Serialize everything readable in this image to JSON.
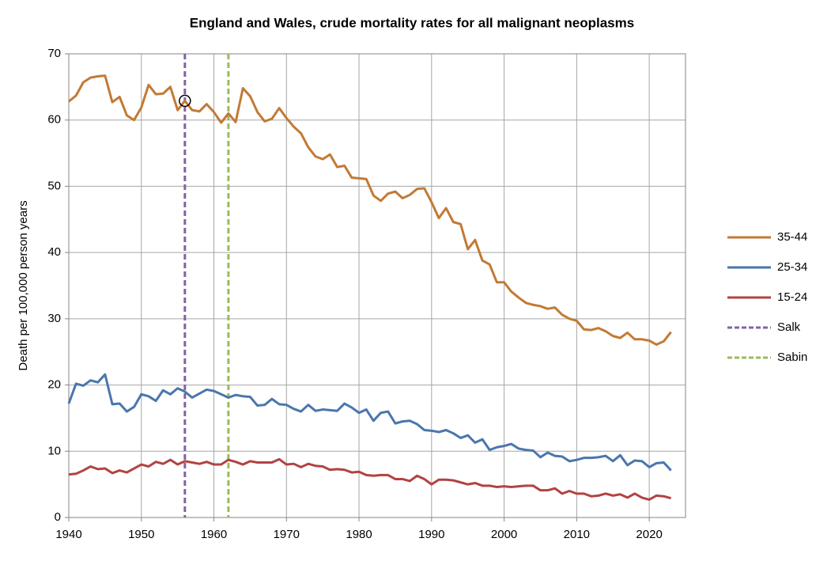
{
  "chart_data": {
    "type": "line",
    "title": "England and Wales, crude mortality rates for all malignant neoplasms",
    "y_label": "Death per 100,000 person years",
    "x": [
      1940,
      1941,
      1942,
      1943,
      1944,
      1945,
      1946,
      1947,
      1948,
      1949,
      1950,
      1951,
      1952,
      1953,
      1954,
      1955,
      1956,
      1957,
      1958,
      1959,
      1960,
      1961,
      1962,
      1963,
      1964,
      1965,
      1966,
      1967,
      1968,
      1969,
      1970,
      1971,
      1972,
      1973,
      1974,
      1975,
      1976,
      1977,
      1978,
      1979,
      1980,
      1981,
      1982,
      1983,
      1984,
      1985,
      1986,
      1987,
      1988,
      1989,
      1990,
      1991,
      1992,
      1993,
      1994,
      1995,
      1996,
      1997,
      1998,
      1999,
      2000,
      2001,
      2002,
      2003,
      2004,
      2005,
      2006,
      2007,
      2008,
      2009,
      2010,
      2011,
      2012,
      2013,
      2014,
      2015,
      2016,
      2017,
      2018,
      2019,
      2020,
      2021,
      2022,
      2023
    ],
    "series": [
      {
        "name": "35-44",
        "color": "#c27a35",
        "values": [
          62.8,
          63.7,
          65.7,
          66.4,
          66.6,
          66.7,
          62.7,
          63.5,
          60.7,
          60.0,
          61.9,
          65.3,
          63.9,
          64.0,
          65.0,
          61.5,
          62.9,
          61.5,
          61.3,
          62.4,
          61.2,
          59.6,
          61.0,
          59.7,
          64.8,
          63.6,
          61.2,
          59.8,
          60.2,
          61.8,
          60.3,
          59.0,
          58.0,
          55.9,
          54.5,
          54.1,
          54.8,
          52.9,
          53.1,
          51.3,
          51.2,
          51.1,
          48.6,
          47.8,
          48.9,
          49.2,
          48.2,
          48.7,
          49.6,
          49.7,
          47.6,
          45.2,
          46.7,
          44.6,
          44.3,
          40.5,
          41.9,
          38.8,
          38.2,
          35.5,
          35.5,
          34.1,
          33.2,
          32.4,
          32.1,
          31.9,
          31.5,
          31.7,
          30.6,
          30.0,
          29.7,
          28.4,
          28.3,
          28.6,
          28.1,
          27.4,
          27.1,
          27.9,
          26.9,
          26.9,
          26.7,
          26.1,
          26.6,
          28.0
        ]
      },
      {
        "name": "25-34",
        "color": "#4a76ad",
        "values": [
          17.2,
          20.2,
          19.9,
          20.7,
          20.4,
          21.6,
          17.1,
          17.2,
          16.0,
          16.7,
          18.6,
          18.3,
          17.6,
          19.2,
          18.6,
          19.5,
          19.0,
          18.1,
          18.7,
          19.3,
          19.1,
          18.6,
          18.1,
          18.5,
          18.3,
          18.2,
          16.9,
          17.0,
          17.9,
          17.1,
          17.0,
          16.4,
          16.0,
          17.0,
          16.1,
          16.3,
          16.2,
          16.1,
          17.2,
          16.6,
          15.8,
          16.3,
          14.6,
          15.8,
          16.0,
          14.2,
          14.5,
          14.6,
          14.1,
          13.2,
          13.1,
          12.9,
          13.2,
          12.7,
          12.0,
          12.4,
          11.3,
          11.8,
          10.2,
          10.6,
          10.8,
          11.1,
          10.4,
          10.2,
          10.1,
          9.1,
          9.8,
          9.3,
          9.2,
          8.5,
          8.7,
          9.0,
          9.0,
          9.1,
          9.3,
          8.5,
          9.4,
          7.9,
          8.6,
          8.5,
          7.6,
          8.2,
          8.3,
          7.1
        ]
      },
      {
        "name": "15-24",
        "color": "#b24343",
        "values": [
          6.5,
          6.6,
          7.1,
          7.7,
          7.3,
          7.4,
          6.7,
          7.1,
          6.8,
          7.4,
          8.0,
          7.7,
          8.4,
          8.1,
          8.7,
          8.0,
          8.5,
          8.3,
          8.1,
          8.4,
          8.0,
          8.0,
          8.7,
          8.4,
          8.0,
          8.5,
          8.3,
          8.3,
          8.3,
          8.8,
          8.0,
          8.1,
          7.6,
          8.1,
          7.8,
          7.7,
          7.2,
          7.3,
          7.2,
          6.8,
          6.9,
          6.4,
          6.3,
          6.4,
          6.4,
          5.8,
          5.8,
          5.5,
          6.3,
          5.8,
          5.0,
          5.7,
          5.7,
          5.6,
          5.3,
          5.0,
          5.2,
          4.8,
          4.8,
          4.6,
          4.7,
          4.6,
          4.7,
          4.8,
          4.8,
          4.1,
          4.1,
          4.4,
          3.6,
          4.0,
          3.6,
          3.6,
          3.2,
          3.3,
          3.6,
          3.3,
          3.5,
          3.0,
          3.6,
          3.0,
          2.7,
          3.3,
          3.2,
          2.9
        ]
      }
    ],
    "vlines": [
      {
        "name": "Salk",
        "color": "#8064a2",
        "x": 1956
      },
      {
        "name": "Sabin",
        "color": "#9bbb59",
        "x": 1962
      }
    ],
    "highlight": {
      "x": 1956,
      "y": 62.9
    },
    "xlim": [
      1940,
      2025
    ],
    "xticks": [
      1940,
      1950,
      1960,
      1970,
      1980,
      1990,
      2000,
      2010,
      2020
    ],
    "ylim": [
      0,
      70
    ],
    "yticks": [
      0,
      10,
      20,
      30,
      40,
      50,
      60,
      70
    ],
    "grid": true,
    "legend": "right"
  }
}
